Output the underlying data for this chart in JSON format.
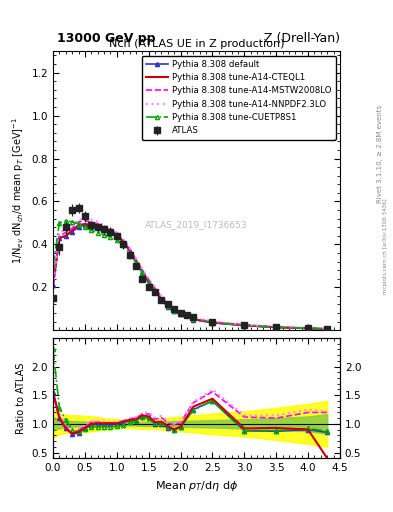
{
  "title_top": "13000 GeV pp",
  "title_right": "Z (Drell-Yan)",
  "plot_title": "Nch (ATLAS UE in Z production)",
  "ylabel_main": "1/N$_{ev}$ dN$_{ch}$/d mean p$_T$ [GeV]$^{-1}$",
  "ylabel_ratio": "Ratio to ATLAS",
  "xlabel": "Mean $p_T$/d$\\eta$ d$\\phi$",
  "watermark": "ATLAS_2019_I1736653",
  "rivet_label": "Rivet 3.1.10, ≥ 2.8M events",
  "mcplots_label": "mcplots.cern.ch [arXiv:1306.3436]",
  "atlas_x": [
    0.0,
    0.1,
    0.2,
    0.3,
    0.4,
    0.5,
    0.6,
    0.7,
    0.8,
    0.9,
    1.0,
    1.1,
    1.2,
    1.3,
    1.4,
    1.5,
    1.6,
    1.7,
    1.8,
    1.9,
    2.0,
    2.1,
    2.2,
    2.5,
    3.0,
    3.5,
    4.0,
    4.3
  ],
  "atlas_y": [
    0.15,
    0.39,
    0.48,
    0.56,
    0.57,
    0.53,
    0.49,
    0.48,
    0.47,
    0.46,
    0.44,
    0.4,
    0.35,
    0.3,
    0.24,
    0.2,
    0.18,
    0.14,
    0.12,
    0.1,
    0.08,
    0.07,
    0.06,
    0.04,
    0.025,
    0.015,
    0.01,
    0.005
  ],
  "atlas_err_y": [
    0.04,
    0.04,
    0.03,
    0.03,
    0.025,
    0.025,
    0.02,
    0.02,
    0.02,
    0.02,
    0.02,
    0.02,
    0.018,
    0.015,
    0.013,
    0.012,
    0.01,
    0.01,
    0.008,
    0.007,
    0.006,
    0.005,
    0.004,
    0.003,
    0.002,
    0.0015,
    0.001,
    0.0008
  ],
  "pythia_x": [
    0.0,
    0.1,
    0.2,
    0.3,
    0.4,
    0.5,
    0.6,
    0.7,
    0.8,
    0.9,
    1.0,
    1.1,
    1.2,
    1.3,
    1.4,
    1.5,
    1.6,
    1.7,
    1.8,
    1.9,
    2.0,
    2.2,
    2.5,
    3.0,
    3.5,
    4.0,
    4.3
  ],
  "default_y": [
    0.21,
    0.43,
    0.44,
    0.46,
    0.48,
    0.49,
    0.48,
    0.48,
    0.47,
    0.46,
    0.44,
    0.41,
    0.37,
    0.32,
    0.27,
    0.22,
    0.18,
    0.14,
    0.11,
    0.09,
    0.075,
    0.05,
    0.035,
    0.022,
    0.013,
    0.009,
    0.006
  ],
  "cteql1_y": [
    0.21,
    0.43,
    0.44,
    0.465,
    0.49,
    0.495,
    0.49,
    0.485,
    0.475,
    0.465,
    0.445,
    0.415,
    0.375,
    0.325,
    0.275,
    0.225,
    0.185,
    0.145,
    0.115,
    0.09,
    0.076,
    0.052,
    0.036,
    0.023,
    0.014,
    0.009,
    0.0045
  ],
  "mstw_y": [
    0.21,
    0.44,
    0.455,
    0.475,
    0.505,
    0.51,
    0.505,
    0.495,
    0.48,
    0.47,
    0.45,
    0.42,
    0.38,
    0.33,
    0.28,
    0.235,
    0.195,
    0.155,
    0.122,
    0.098,
    0.082,
    0.056,
    0.039,
    0.025,
    0.015,
    0.01,
    0.006
  ],
  "nnpdf_y": [
    0.21,
    0.455,
    0.47,
    0.49,
    0.515,
    0.52,
    0.515,
    0.505,
    0.49,
    0.475,
    0.455,
    0.425,
    0.385,
    0.335,
    0.285,
    0.24,
    0.2,
    0.16,
    0.126,
    0.1,
    0.084,
    0.058,
    0.041,
    0.026,
    0.016,
    0.011,
    0.007
  ],
  "cuetp_y": [
    0.3,
    0.5,
    0.51,
    0.505,
    0.495,
    0.48,
    0.465,
    0.455,
    0.445,
    0.435,
    0.42,
    0.395,
    0.36,
    0.315,
    0.268,
    0.22,
    0.182,
    0.143,
    0.113,
    0.09,
    0.076,
    0.052,
    0.036,
    0.023,
    0.014,
    0.009,
    0.006
  ],
  "ratio_default_y": [
    1.55,
    1.1,
    0.92,
    0.82,
    0.84,
    0.92,
    0.98,
    1.0,
    1.0,
    1.0,
    1.0,
    1.02,
    1.06,
    1.07,
    1.12,
    1.1,
    1.0,
    1.0,
    0.92,
    0.9,
    0.94,
    1.25,
    1.4,
    0.88,
    0.87,
    0.9,
    0.85
  ],
  "ratio_cteql1_y": [
    1.55,
    1.1,
    0.92,
    0.83,
    0.86,
    0.93,
    1.0,
    1.01,
    1.01,
    1.01,
    1.01,
    1.04,
    1.07,
    1.08,
    1.15,
    1.13,
    1.03,
    1.04,
    0.96,
    0.9,
    0.95,
    1.3,
    1.44,
    0.92,
    0.93,
    0.9,
    0.4
  ],
  "ratio_mstw_y": [
    1.55,
    1.13,
    0.95,
    0.85,
    0.89,
    0.96,
    1.03,
    1.03,
    1.02,
    1.02,
    1.02,
    1.05,
    1.09,
    1.1,
    1.17,
    1.175,
    1.08,
    1.11,
    1.02,
    0.98,
    1.025,
    1.37,
    1.56,
    1.12,
    1.1,
    1.2,
    1.2
  ],
  "ratio_nnpdf_y": [
    1.55,
    1.17,
    0.98,
    0.875,
    0.905,
    0.98,
    1.05,
    1.05,
    1.04,
    1.03,
    1.035,
    1.06,
    1.1,
    1.12,
    1.19,
    1.2,
    1.11,
    1.14,
    1.05,
    1.0,
    1.05,
    1.38,
    1.6,
    1.15,
    1.15,
    1.25,
    1.22
  ],
  "ratio_cuetp_y": [
    2.3,
    1.28,
    1.06,
    0.9,
    0.87,
    0.905,
    0.95,
    0.95,
    0.945,
    0.945,
    0.955,
    0.985,
    1.03,
    1.05,
    1.12,
    1.1,
    1.01,
    1.02,
    0.94,
    0.9,
    0.95,
    1.24,
    1.4,
    0.88,
    0.88,
    0.92,
    0.87
  ],
  "band_x": [
    0.0,
    0.1,
    0.2,
    0.3,
    0.4,
    0.5,
    0.6,
    0.7,
    0.8,
    0.9,
    1.0,
    1.1,
    1.2,
    1.3,
    1.4,
    1.5,
    1.6,
    1.7,
    1.8,
    1.9,
    2.0,
    2.2,
    2.5,
    3.0,
    3.5,
    4.0,
    4.3
  ],
  "band_yellow_lo": [
    0.75,
    0.82,
    0.84,
    0.85,
    0.85,
    0.86,
    0.87,
    0.88,
    0.9,
    0.91,
    0.92,
    0.93,
    0.93,
    0.92,
    0.91,
    0.91,
    0.91,
    0.9,
    0.89,
    0.88,
    0.87,
    0.85,
    0.82,
    0.78,
    0.72,
    0.65,
    0.6
  ],
  "band_yellow_hi": [
    1.25,
    1.18,
    1.16,
    1.15,
    1.15,
    1.14,
    1.13,
    1.12,
    1.1,
    1.09,
    1.08,
    1.07,
    1.07,
    1.08,
    1.09,
    1.09,
    1.09,
    1.1,
    1.11,
    1.12,
    1.13,
    1.15,
    1.18,
    1.22,
    1.28,
    1.35,
    1.4
  ],
  "band_green_lo": [
    0.9,
    0.92,
    0.94,
    0.95,
    0.955,
    0.96,
    0.962,
    0.965,
    0.968,
    0.97,
    0.972,
    0.973,
    0.973,
    0.97,
    0.965,
    0.963,
    0.962,
    0.96,
    0.955,
    0.95,
    0.948,
    0.943,
    0.935,
    0.92,
    0.9,
    0.87,
    0.83
  ],
  "band_green_hi": [
    1.1,
    1.08,
    1.06,
    1.05,
    1.045,
    1.04,
    1.038,
    1.035,
    1.032,
    1.03,
    1.028,
    1.027,
    1.027,
    1.03,
    1.035,
    1.037,
    1.038,
    1.04,
    1.045,
    1.05,
    1.052,
    1.057,
    1.065,
    1.08,
    1.1,
    1.13,
    1.17
  ],
  "color_atlas": "#222222",
  "color_default": "#3333cc",
  "color_cteql1": "#cc0000",
  "color_mstw": "#ff00ff",
  "color_nnpdf": "#ff88ff",
  "color_cuetp": "#00aa00",
  "xlim": [
    0,
    4.5
  ],
  "ylim_main": [
    0,
    1.3
  ],
  "ylim_ratio": [
    0.4,
    2.5
  ],
  "ratio_yticks": [
    0.5,
    1.0,
    1.5,
    2.0
  ],
  "main_yticks": [
    0.2,
    0.4,
    0.6,
    0.8,
    1.0,
    1.2
  ]
}
